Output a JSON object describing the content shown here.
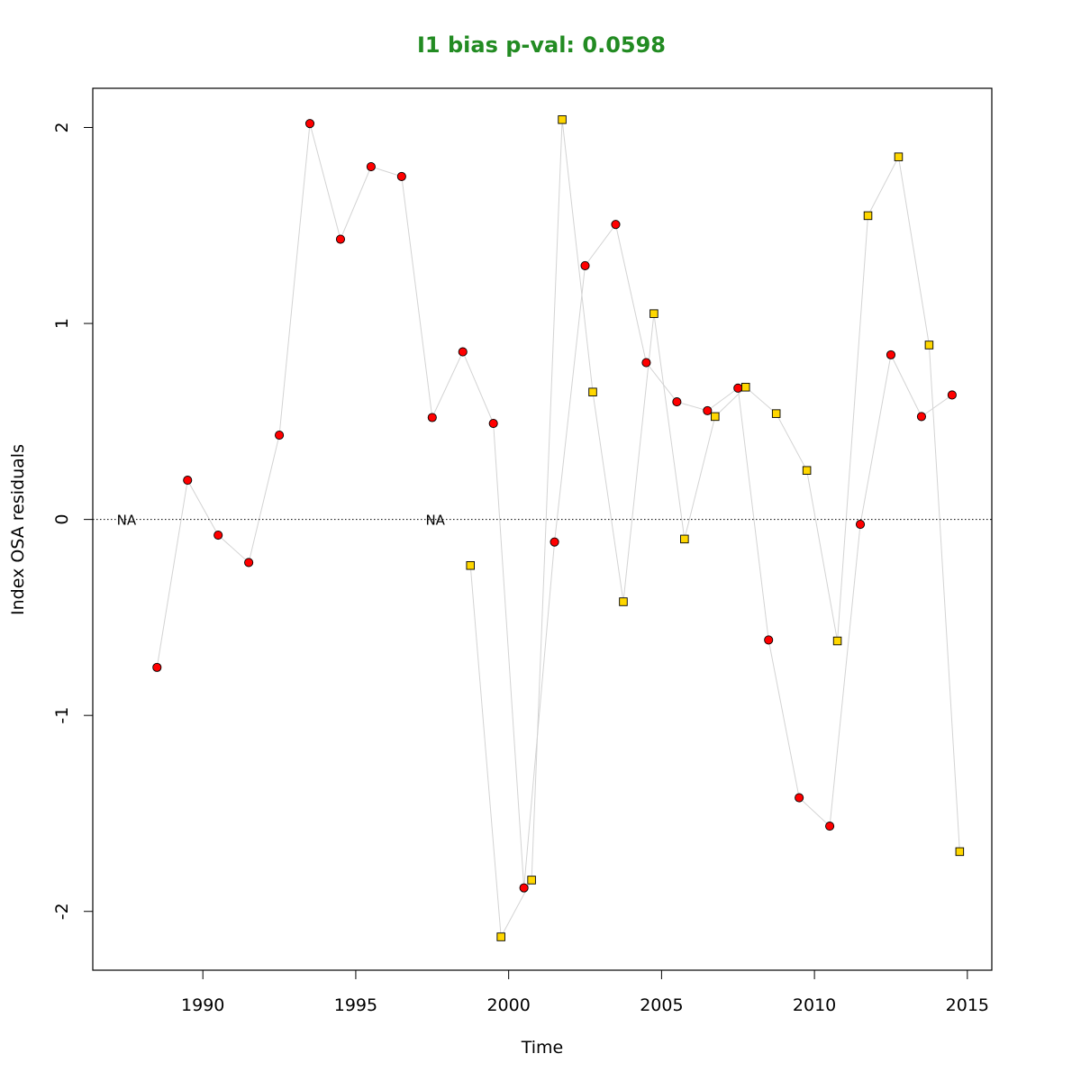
{
  "chart_data": {
    "type": "scatter",
    "title": "I1 bias p-val: 0.0598",
    "title_color": "#228B22",
    "xlabel": "Time",
    "ylabel": "Index OSA residuals",
    "xlim": [
      1986.4,
      2015.8
    ],
    "ylim": [
      -2.3,
      2.2
    ],
    "x_ticks": [
      1990,
      1995,
      2000,
      2005,
      2010,
      2015
    ],
    "y_ticks": [
      -2,
      -1,
      0,
      1,
      2
    ],
    "x_tick_labels": [
      "1990",
      "1995",
      "2000",
      "2005",
      "2010",
      "2015"
    ],
    "y_tick_labels": [
      "-2",
      "-1",
      "0",
      "1",
      "2"
    ],
    "grid": false,
    "reference_line": {
      "y": 0,
      "style": "dotted"
    },
    "connector_color": "#d3d3d3",
    "series": [
      {
        "marker": "circle",
        "fill": "#ff0000",
        "x": [
          1988.5,
          1989.5,
          1990.5,
          1991.5,
          1992.5,
          1993.5,
          1994.5,
          1995.5,
          1996.5,
          1997.5,
          1998.5,
          1999.5,
          2000.5,
          2001.5,
          2002.5,
          2003.5,
          2004.5,
          2005.5,
          2006.5,
          2007.5,
          2008.5,
          2009.5,
          2010.5,
          2011.5,
          2012.5,
          2013.5,
          2014.5
        ],
        "values": [
          -0.755,
          0.2,
          -0.08,
          -0.22,
          0.43,
          2.02,
          1.43,
          1.8,
          1.75,
          0.52,
          0.855,
          0.49,
          -1.88,
          -0.115,
          1.295,
          1.505,
          0.8,
          0.6,
          0.555,
          0.67,
          -0.615,
          -1.42,
          -1.565,
          -0.025,
          0.84,
          0.525,
          0.635
        ]
      },
      {
        "marker": "square",
        "fill": "#ffd700",
        "x": [
          1998.75,
          1999.75,
          2000.75,
          2001.75,
          2002.75,
          2003.75,
          2004.75,
          2005.75,
          2006.75,
          2007.75,
          2008.75,
          2009.75,
          2010.75,
          2011.75,
          2012.75,
          2013.75,
          2014.75
        ],
        "values": [
          -0.235,
          -2.13,
          -1.84,
          2.04,
          0.65,
          -0.42,
          1.05,
          -0.1,
          0.525,
          0.675,
          0.54,
          0.25,
          -0.62,
          1.55,
          1.85,
          0.89,
          -1.695
        ]
      }
    ],
    "annotations": [
      {
        "text": "NA",
        "x": 1987.5,
        "y": 0
      },
      {
        "text": "NA",
        "x": 1997.6,
        "y": 0
      }
    ]
  }
}
